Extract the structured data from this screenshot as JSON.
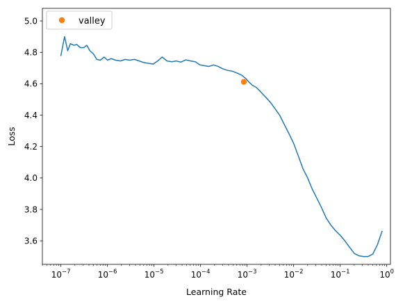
{
  "chart_data": {
    "type": "line",
    "xlabel": "Learning Rate",
    "ylabel": "Loss",
    "xscale": "log",
    "xlim": [
      4e-08,
      1.2
    ],
    "ylim": [
      3.45,
      5.08
    ],
    "x_ticks": [
      {
        "value": 1e-07,
        "label": "10",
        "exp": "−7"
      },
      {
        "value": 1e-06,
        "label": "10",
        "exp": "−6"
      },
      {
        "value": 1e-05,
        "label": "10",
        "exp": "−5"
      },
      {
        "value": 0.0001,
        "label": "10",
        "exp": "−4"
      },
      {
        "value": 0.001,
        "label": "10",
        "exp": "−3"
      },
      {
        "value": 0.01,
        "label": "10",
        "exp": "−2"
      },
      {
        "value": 0.1,
        "label": "10",
        "exp": "−1"
      },
      {
        "value": 1,
        "label": "10",
        "exp": "0"
      }
    ],
    "y_ticks": [
      {
        "value": 3.6,
        "label": "3.6"
      },
      {
        "value": 3.8,
        "label": "3.8"
      },
      {
        "value": 4.0,
        "label": "4.0"
      },
      {
        "value": 4.2,
        "label": "4.2"
      },
      {
        "value": 4.4,
        "label": "4.4"
      },
      {
        "value": 4.6,
        "label": "4.6"
      },
      {
        "value": 4.8,
        "label": "4.8"
      },
      {
        "value": 5.0,
        "label": "5.0"
      }
    ],
    "legend_position": "top-left",
    "grid": false,
    "series": [
      {
        "color": "#1f77b4",
        "points": [
          [
            1e-07,
            4.78
          ],
          [
            1.2e-07,
            4.9
          ],
          [
            1.4e-07,
            4.81
          ],
          [
            1.6e-07,
            4.855
          ],
          [
            1.9e-07,
            4.845
          ],
          [
            2.2e-07,
            4.85
          ],
          [
            2.6e-07,
            4.83
          ],
          [
            3.1e-07,
            4.83
          ],
          [
            3.6e-07,
            4.845
          ],
          [
            4.2e-07,
            4.81
          ],
          [
            5e-07,
            4.79
          ],
          [
            5.9e-07,
            4.755
          ],
          [
            7e-07,
            4.75
          ],
          [
            8.5e-07,
            4.77
          ],
          [
            1e-06,
            4.75
          ],
          [
            1.2e-06,
            4.76
          ],
          [
            1.5e-06,
            4.75
          ],
          [
            1.9e-06,
            4.745
          ],
          [
            2.4e-06,
            4.755
          ],
          [
            3e-06,
            4.75
          ],
          [
            3.8e-06,
            4.755
          ],
          [
            4.8e-06,
            4.745
          ],
          [
            6e-06,
            4.735
          ],
          [
            7.6e-06,
            4.73
          ],
          [
            9.6e-06,
            4.725
          ],
          [
            1.2e-05,
            4.745
          ],
          [
            1.5e-05,
            4.77
          ],
          [
            1.9e-05,
            4.745
          ],
          [
            2.4e-05,
            4.74
          ],
          [
            3e-05,
            4.745
          ],
          [
            3.8e-05,
            4.738
          ],
          [
            4.8e-05,
            4.752
          ],
          [
            6.1e-05,
            4.745
          ],
          [
            7.7e-05,
            4.74
          ],
          [
            9.7e-05,
            4.72
          ],
          [
            0.00012,
            4.715
          ],
          [
            0.00015,
            4.71
          ],
          [
            0.00019,
            4.72
          ],
          [
            0.00024,
            4.71
          ],
          [
            0.0003,
            4.695
          ],
          [
            0.00038,
            4.685
          ],
          [
            0.00048,
            4.68
          ],
          [
            0.00061,
            4.668
          ],
          [
            0.00076,
            4.655
          ],
          [
            0.00096,
            4.63
          ],
          [
            0.0011,
            4.61
          ],
          [
            0.0013,
            4.59
          ],
          [
            0.0016,
            4.575
          ],
          [
            0.002,
            4.545
          ],
          [
            0.0025,
            4.515
          ],
          [
            0.0032,
            4.48
          ],
          [
            0.004,
            4.44
          ],
          [
            0.005,
            4.4
          ],
          [
            0.0063,
            4.34
          ],
          [
            0.008,
            4.28
          ],
          [
            0.01,
            4.22
          ],
          [
            0.0126,
            4.14
          ],
          [
            0.0158,
            4.06
          ],
          [
            0.02,
            4.0
          ],
          [
            0.025,
            3.93
          ],
          [
            0.0316,
            3.87
          ],
          [
            0.0398,
            3.81
          ],
          [
            0.05,
            3.745
          ],
          [
            0.063,
            3.7
          ],
          [
            0.079,
            3.665
          ],
          [
            0.1,
            3.635
          ],
          [
            0.126,
            3.6
          ],
          [
            0.158,
            3.56
          ],
          [
            0.2,
            3.52
          ],
          [
            0.25,
            3.505
          ],
          [
            0.316,
            3.5
          ],
          [
            0.398,
            3.5
          ],
          [
            0.5,
            3.515
          ],
          [
            0.63,
            3.575
          ],
          [
            0.79,
            3.66
          ]
        ]
      }
    ],
    "marker": {
      "name": "valley",
      "x": 0.00085,
      "y": 4.612,
      "color": "#ff7f0e"
    }
  }
}
